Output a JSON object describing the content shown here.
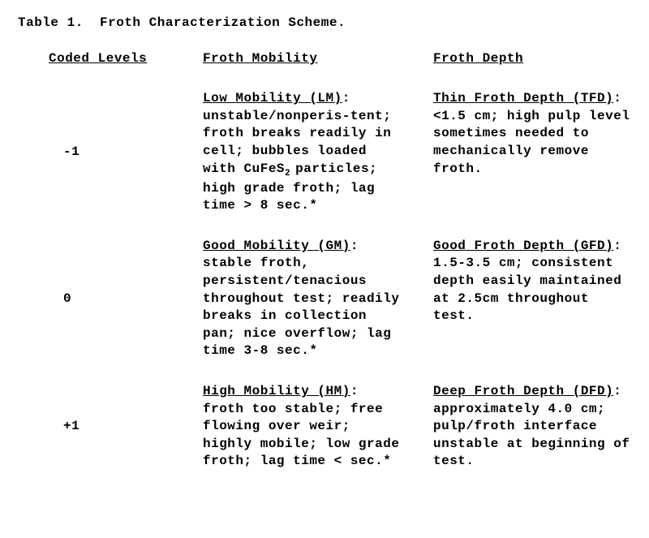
{
  "title": "Table 1.  Froth Characterization Scheme.",
  "headers": {
    "levels": "Coded Levels",
    "mobility": "Froth Mobility",
    "depth": "Froth Depth"
  },
  "rows": [
    {
      "level": "-1",
      "mobility_head": "Low Mobility (LM)",
      "mobility_body_pre": "unstable/nonperis-tent; froth breaks readily in cell; bubbles loaded with CuFeS",
      "mobility_body_post": "particles; high grade froth; lag time > 8 sec.*",
      "depth_head": "Thin Froth Depth (TFD)",
      "depth_body": "<1.5 cm; high pulp level sometimes needed to mechanically remove froth."
    },
    {
      "level": "0",
      "mobility_head": "Good Mobility (GM)",
      "mobility_body": "stable froth, persistent/tenacious throughout test; readily breaks in collection pan; nice overflow; lag time 3-8 sec.*",
      "depth_head": "Good Froth Depth (GFD)",
      "depth_body": "1.5-3.5 cm; consistent depth easily maintained at 2.5cm throughout test."
    },
    {
      "level": "+1",
      "mobility_head": "High Mobility (HM)",
      "mobility_body": "froth too stable; free flowing over weir; highly mobile; low grade froth; lag time < sec.*",
      "depth_head": "Deep Froth Depth (DFD)",
      "depth_body": "approximately 4.0 cm; pulp/froth interface unstable at beginning of test."
    }
  ],
  "cufes_sub": "2"
}
